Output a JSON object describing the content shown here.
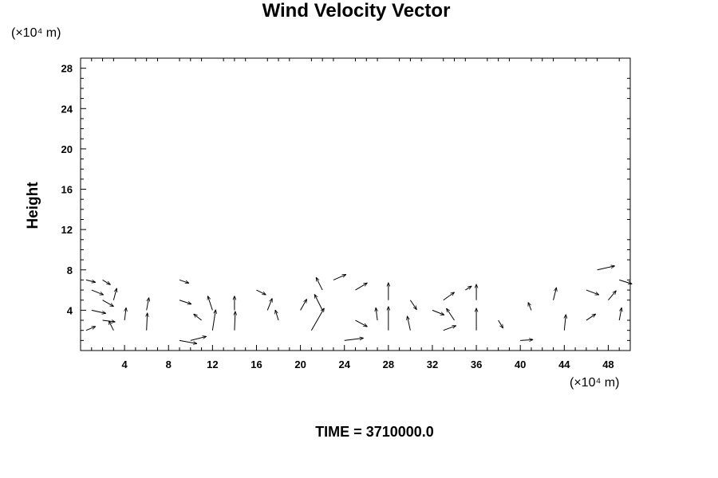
{
  "chart_data": {
    "type": "vector-field",
    "title": "Wind Velocity Vector",
    "ylabel": "Height",
    "xlabel": "",
    "y_unit": "(×10⁴ m)",
    "x_unit": "(×10⁴ m)",
    "annotation": "TIME = 3710000.0",
    "xlim": [
      0,
      50
    ],
    "ylim": [
      0,
      29
    ],
    "x_ticks": [
      4,
      8,
      12,
      16,
      20,
      24,
      28,
      32,
      36,
      40,
      44,
      48
    ],
    "y_ticks": [
      4,
      8,
      12,
      16,
      20,
      24,
      28
    ],
    "grid": false,
    "vectors": [
      {
        "x": 0.5,
        "y": 7,
        "u": 1.2,
        "v": -0.3
      },
      {
        "x": 1,
        "y": 6,
        "u": 1.5,
        "v": -0.6
      },
      {
        "x": 2,
        "y": 5,
        "u": 1.4,
        "v": -0.8
      },
      {
        "x": 1,
        "y": 4,
        "u": 1.8,
        "v": -0.4
      },
      {
        "x": 2,
        "y": 3,
        "u": 1.6,
        "v": -0.2
      },
      {
        "x": 0.5,
        "y": 2,
        "u": 1.2,
        "v": 0.5
      },
      {
        "x": 3,
        "y": 2,
        "u": -0.6,
        "v": 1.2
      },
      {
        "x": 3,
        "y": 5,
        "u": 0.4,
        "v": 1.5
      },
      {
        "x": 2,
        "y": 7,
        "u": 1,
        "v": -0.6
      },
      {
        "x": 4,
        "y": 3,
        "u": 0.2,
        "v": 1.6
      },
      {
        "x": 6,
        "y": 2,
        "u": 0.1,
        "v": 2.2
      },
      {
        "x": 6,
        "y": 4,
        "u": 0.3,
        "v": 1.6
      },
      {
        "x": 9,
        "y": 1,
        "u": 2.2,
        "v": -0.4
      },
      {
        "x": 10,
        "y": 1,
        "u": 2,
        "v": 0.5
      },
      {
        "x": 12,
        "y": 2,
        "u": 0.4,
        "v": 2.6
      },
      {
        "x": 12,
        "y": 4,
        "u": -0.6,
        "v": 1.8
      },
      {
        "x": 11,
        "y": 3,
        "u": -1,
        "v": 0.8
      },
      {
        "x": 9,
        "y": 5,
        "u": 1.5,
        "v": -0.5
      },
      {
        "x": 9,
        "y": 7,
        "u": 1.2,
        "v": -0.4
      },
      {
        "x": 14,
        "y": 2,
        "u": 0.1,
        "v": 2.4
      },
      {
        "x": 14,
        "y": 4,
        "u": 0,
        "v": 1.8
      },
      {
        "x": 16,
        "y": 6,
        "u": 1.2,
        "v": -0.6
      },
      {
        "x": 17,
        "y": 4,
        "u": 0.6,
        "v": 1.5
      },
      {
        "x": 18,
        "y": 3,
        "u": -0.4,
        "v": 1.3
      },
      {
        "x": 20,
        "y": 4,
        "u": 0.8,
        "v": 1.4
      },
      {
        "x": 21,
        "y": 2,
        "u": 1.6,
        "v": 2.8
      },
      {
        "x": 22,
        "y": 4,
        "u": -1,
        "v": 2
      },
      {
        "x": 22,
        "y": 6,
        "u": -0.8,
        "v": 1.6
      },
      {
        "x": 23,
        "y": 7,
        "u": 1.6,
        "v": 0.7
      },
      {
        "x": 24,
        "y": 1,
        "u": 2.4,
        "v": 0.3
      },
      {
        "x": 25,
        "y": 3,
        "u": 1.5,
        "v": -0.8
      },
      {
        "x": 25,
        "y": 6,
        "u": 1.5,
        "v": 0.9
      },
      {
        "x": 27,
        "y": 3,
        "u": -0.2,
        "v": 1.6
      },
      {
        "x": 28,
        "y": 2,
        "u": 0,
        "v": 3
      },
      {
        "x": 28,
        "y": 5,
        "u": 0,
        "v": 2.2
      },
      {
        "x": 30,
        "y": 2,
        "u": -0.4,
        "v": 1.8
      },
      {
        "x": 30,
        "y": 5,
        "u": 0.8,
        "v": -1.2
      },
      {
        "x": 32,
        "y": 4,
        "u": 1.5,
        "v": -0.6
      },
      {
        "x": 33,
        "y": 2,
        "u": 1.6,
        "v": 0.6
      },
      {
        "x": 33,
        "y": 5,
        "u": 1.4,
        "v": 1
      },
      {
        "x": 34,
        "y": 3,
        "u": -1,
        "v": 1.5
      },
      {
        "x": 35,
        "y": 6,
        "u": 0.8,
        "v": 0.5
      },
      {
        "x": 36,
        "y": 2,
        "u": 0,
        "v": 2.8
      },
      {
        "x": 36,
        "y": 5,
        "u": 0,
        "v": 2
      },
      {
        "x": 38,
        "y": 3,
        "u": 0.6,
        "v": -1
      },
      {
        "x": 40,
        "y": 1,
        "u": 1.6,
        "v": 0.1
      },
      {
        "x": 41,
        "y": 4,
        "u": -0.4,
        "v": 1
      },
      {
        "x": 43,
        "y": 5,
        "u": 0.4,
        "v": 1.6
      },
      {
        "x": 44,
        "y": 2,
        "u": 0.2,
        "v": 2
      },
      {
        "x": 46,
        "y": 3,
        "u": 1.2,
        "v": 0.8
      },
      {
        "x": 46,
        "y": 6,
        "u": 1.6,
        "v": -0.6
      },
      {
        "x": 47,
        "y": 8,
        "u": 2.2,
        "v": 0.5
      },
      {
        "x": 48,
        "y": 5,
        "u": 1,
        "v": 1.2
      },
      {
        "x": 49,
        "y": 3,
        "u": 0.3,
        "v": 1.6
      },
      {
        "x": 49,
        "y": 7,
        "u": 1.6,
        "v": -0.5
      }
    ]
  }
}
